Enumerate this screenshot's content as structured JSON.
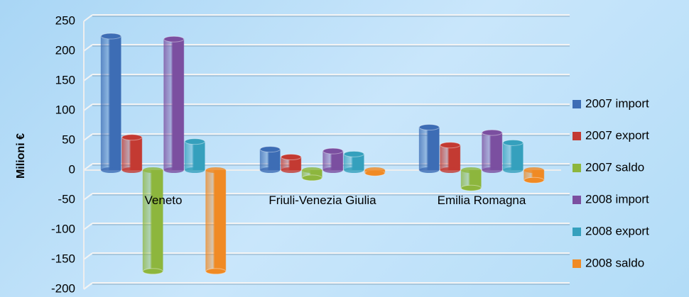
{
  "chart_data": {
    "type": "bar",
    "y_label": "Milioni €",
    "categories": [
      "Veneto",
      "Friuli-Venezia Giulia",
      "Emilia Romagna"
    ],
    "series": [
      {
        "name": "2007 import",
        "color": "#3d6db5",
        "values": [
          225,
          35,
          72
        ]
      },
      {
        "name": "2007 export",
        "color": "#c33a32",
        "values": [
          55,
          22,
          42
        ]
      },
      {
        "name": "2007 saldo",
        "color": "#8db63d",
        "values": [
          -170,
          -13,
          -30
        ]
      },
      {
        "name": "2008 import",
        "color": "#7b4fa0",
        "values": [
          220,
          32,
          63
        ]
      },
      {
        "name": "2008 export",
        "color": "#35a0bd",
        "values": [
          48,
          27,
          46
        ]
      },
      {
        "name": "2008 saldo",
        "color": "#f08a24",
        "values": [
          -170,
          -5,
          -17
        ]
      }
    ],
    "ylim": [
      -200,
      250
    ],
    "yticks": [
      -200,
      -150,
      -100,
      -50,
      0,
      50,
      100,
      150,
      200,
      250
    ],
    "grid": true,
    "legend": "right"
  }
}
